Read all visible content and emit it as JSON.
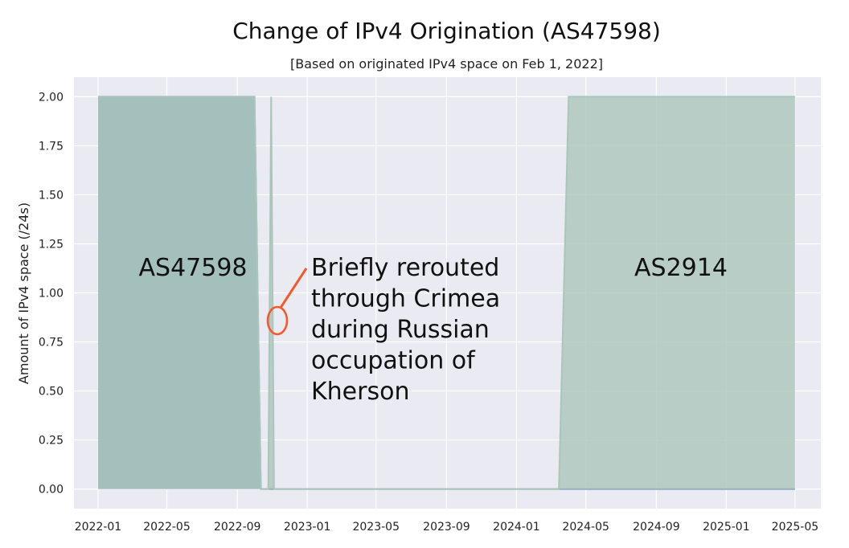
{
  "chart_data": {
    "type": "area",
    "title": "Change of IPv4 Origination (AS47598)",
    "subtitle": "[Based on originated IPv4 space on Feb 1, 2022]",
    "xlabel": "",
    "ylabel": "Amount of IPv4 space (/24s)",
    "ylim": [
      -0.1,
      2.1
    ],
    "xlim": [
      "2021-11-20",
      "2025-06-15"
    ],
    "grid": true,
    "x_ticks": [
      "2022-01",
      "2022-05",
      "2022-09",
      "2023-01",
      "2023-05",
      "2023-09",
      "2024-01",
      "2024-05",
      "2024-09",
      "2025-01",
      "2025-05"
    ],
    "y_ticks": [
      "0.00",
      "0.25",
      "0.50",
      "0.75",
      "1.00",
      "1.25",
      "1.50",
      "1.75",
      "2.00"
    ],
    "series": [
      {
        "name": "AS47598",
        "color": "#7e9dbf",
        "points": [
          [
            "2022-01-01",
            2
          ],
          [
            "2022-10-01",
            2
          ],
          [
            "2022-10-12",
            0
          ],
          [
            "2025-05-01",
            0
          ]
        ]
      },
      {
        "name": "AS2914",
        "color": "#aac6ba",
        "points": [
          [
            "2022-01-01",
            2
          ],
          [
            "2022-10-01",
            2
          ],
          [
            "2022-10-12",
            0
          ],
          [
            "2022-10-25",
            0
          ],
          [
            "2022-10-30",
            2
          ],
          [
            "2022-11-04",
            0
          ],
          [
            "2024-03-15",
            0
          ],
          [
            "2024-04-01",
            2
          ],
          [
            "2025-05-01",
            2
          ]
        ]
      }
    ],
    "annotations": [
      {
        "text": "AS47598"
      },
      {
        "text": "AS2914"
      },
      {
        "lines": [
          "Briefly rerouted",
          "through Crimea",
          "during Russian",
          "occupation of",
          "Kherson"
        ]
      }
    ],
    "highlight_color": "#f25a2b"
  }
}
